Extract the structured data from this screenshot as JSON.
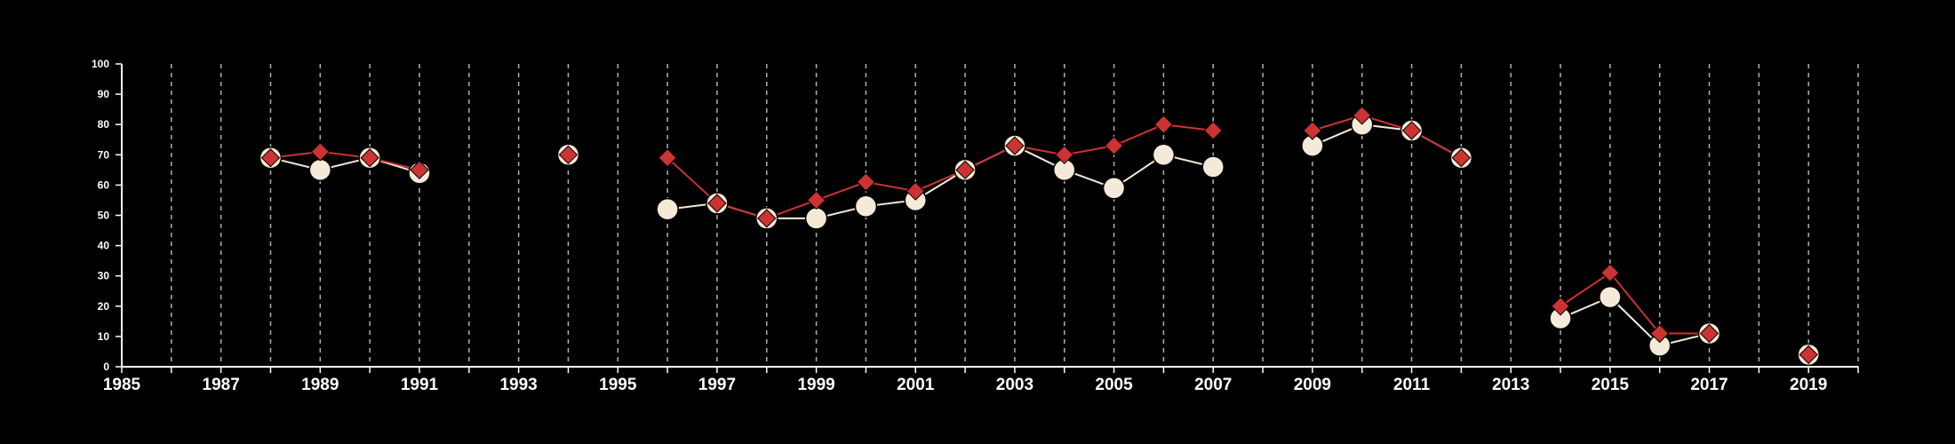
{
  "chart_data": {
    "type": "line",
    "title": "",
    "xlabel": "",
    "ylabel": "",
    "xlim": [
      1985,
      2020
    ],
    "ylim": [
      0,
      100
    ],
    "x_ticks": [
      "1985",
      "1987",
      "1989",
      "1991",
      "1993",
      "1995",
      "1997",
      "1999",
      "2001",
      "2003",
      "2005",
      "2007",
      "2009",
      "2011",
      "2013",
      "2015",
      "2017",
      "2019"
    ],
    "y_ticks": [
      "0",
      "10",
      "20",
      "30",
      "40",
      "50",
      "60",
      "70",
      "80",
      "90",
      "100"
    ],
    "grid": "vertical dashed lines at every year",
    "colors": {
      "background": "#000000",
      "series_1": "#f5ead8",
      "series_2": "#cc3333",
      "grid": "#b0b0b0",
      "axis": "#ffffff"
    },
    "series": [
      {
        "marker": "circle",
        "points": [
          [
            1988,
            69
          ],
          [
            1989,
            65
          ],
          [
            1990,
            69
          ],
          [
            1991,
            64
          ],
          null,
          [
            1994,
            70
          ],
          null,
          [
            1996,
            52
          ],
          [
            1997,
            54
          ],
          [
            1998,
            49
          ],
          [
            1999,
            49
          ],
          [
            2000,
            53
          ],
          [
            2001,
            55
          ],
          [
            2002,
            65
          ],
          [
            2003,
            73
          ],
          [
            2004,
            65
          ],
          [
            2005,
            59
          ],
          [
            2006,
            70
          ],
          [
            2007,
            66
          ],
          null,
          [
            2009,
            73
          ],
          [
            2010,
            80
          ],
          [
            2011,
            78
          ],
          [
            2012,
            69
          ],
          null,
          [
            2014,
            16
          ],
          [
            2015,
            23
          ],
          [
            2016,
            7
          ],
          [
            2017,
            11
          ],
          null,
          [
            2019,
            4
          ]
        ]
      },
      {
        "marker": "diamond",
        "points": [
          [
            1988,
            69
          ],
          [
            1989,
            71
          ],
          [
            1990,
            69
          ],
          [
            1991,
            65
          ],
          null,
          [
            1994,
            70
          ],
          null,
          [
            1996,
            69
          ],
          [
            1997,
            54
          ],
          [
            1998,
            49
          ],
          [
            1999,
            55
          ],
          [
            2000,
            61
          ],
          [
            2001,
            58
          ],
          [
            2002,
            65
          ],
          [
            2003,
            73
          ],
          [
            2004,
            70
          ],
          [
            2005,
            73
          ],
          [
            2006,
            80
          ],
          [
            2007,
            78
          ],
          null,
          [
            2009,
            78
          ],
          [
            2010,
            83
          ],
          [
            2011,
            78
          ],
          [
            2012,
            69
          ],
          null,
          [
            2014,
            20
          ],
          [
            2015,
            31
          ],
          [
            2016,
            11
          ],
          [
            2017,
            11
          ],
          null,
          [
            2019,
            4
          ]
        ]
      }
    ]
  }
}
